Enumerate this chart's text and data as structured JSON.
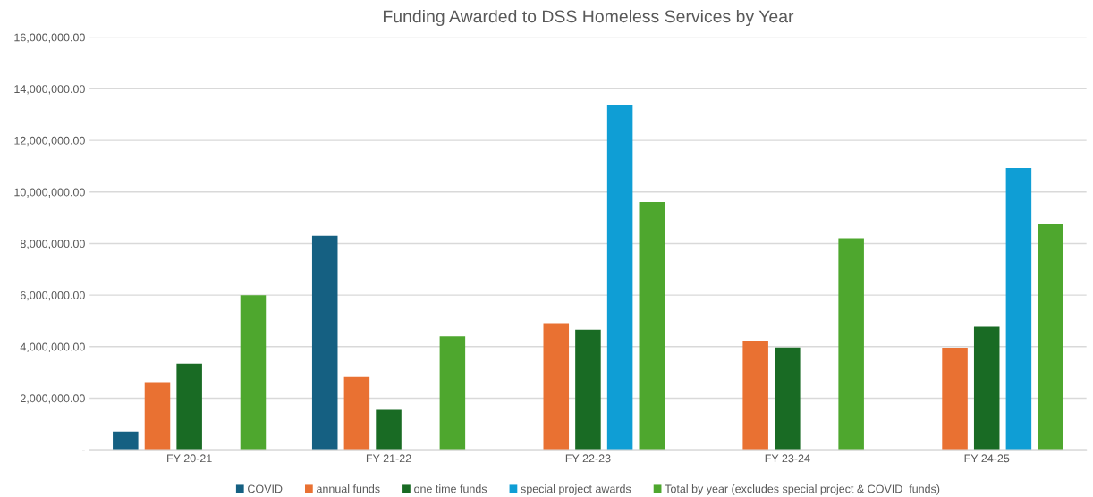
{
  "chart_data": {
    "type": "bar",
    "title": "Funding Awarded to DSS Homeless Services by Year",
    "categories": [
      "FY 20-21",
      "FY 21-22",
      "FY 22-23",
      "FY 23-24",
      "FY 24-25"
    ],
    "series": [
      {
        "name": "COVID",
        "color": "#156082",
        "values": [
          710000,
          8300000,
          null,
          null,
          null
        ]
      },
      {
        "name": "annual funds",
        "color": "#e97132",
        "values": [
          2620000,
          2820000,
          4910000,
          4210000,
          3960000
        ]
      },
      {
        "name": "one time funds",
        "color": "#196b24",
        "values": [
          3340000,
          1550000,
          4660000,
          3970000,
          4770000
        ]
      },
      {
        "name": "special project awards",
        "color": "#0f9ed5",
        "values": [
          null,
          null,
          13360000,
          null,
          10930000
        ]
      },
      {
        "name": "Total by year (excludes special project & COVID  funds)",
        "color": "#4ea72e",
        "values": [
          6000000,
          4400000,
          9610000,
          8210000,
          8740000
        ]
      }
    ],
    "ylim": [
      0,
      16000000
    ],
    "yticks": [
      {
        "value": 0,
        "label": "-"
      },
      {
        "value": 2000000,
        "label": "2,000,000.00"
      },
      {
        "value": 4000000,
        "label": "4,000,000.00"
      },
      {
        "value": 6000000,
        "label": "6,000,000.00"
      },
      {
        "value": 8000000,
        "label": "8,000,000.00"
      },
      {
        "value": 10000000,
        "label": "10,000,000.00"
      },
      {
        "value": 12000000,
        "label": "12,000,000.00"
      },
      {
        "value": 14000000,
        "label": "14,000,000.00"
      },
      {
        "value": 16000000,
        "label": "16,000,000.00"
      }
    ],
    "grid": "y",
    "legend": "bottom"
  }
}
